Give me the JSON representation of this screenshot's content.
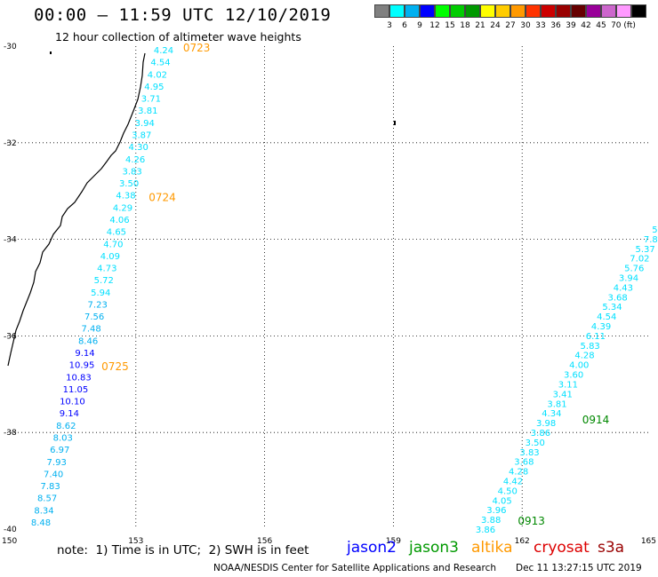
{
  "header": {
    "title": "00:00 – 11:59 UTC 12/10/2019",
    "subtitle": "12 hour collection of altimeter wave heights"
  },
  "colorbar": {
    "colors": [
      "#808080",
      "#00ffff",
      "#00b0f0",
      "#0000ff",
      "#00ff00",
      "#00cc00",
      "#009900",
      "#ffff00",
      "#ffcc00",
      "#ff9900",
      "#ff3300",
      "#cc0000",
      "#990000",
      "#660000",
      "#990099",
      "#cc66cc",
      "#ff99ff",
      "#000000"
    ],
    "labels": [
      "3",
      "6",
      "9",
      "12",
      "15",
      "18",
      "21",
      "24",
      "27",
      "30",
      "33",
      "36",
      "39",
      "42",
      "45",
      "70 (ft)"
    ]
  },
  "map": {
    "lat_labels": [
      "-30",
      "-32",
      "-34",
      "-36",
      "-38",
      "-40"
    ],
    "lon_labels": [
      "150",
      "153",
      "156",
      "159",
      "162",
      "165"
    ],
    "lat_range": [
      -40,
      -30
    ],
    "lon_range": [
      150,
      165
    ]
  },
  "passes": [
    {
      "label": "0723",
      "color": "#ff9900",
      "lat": -30.0,
      "lon": 154.1
    },
    {
      "label": "0724",
      "color": "#ff9900",
      "lat": -33.1,
      "lon": 153.3
    },
    {
      "label": "0725",
      "color": "#ff9900",
      "lat": -36.6,
      "lon": 152.2
    },
    {
      "label": "0914",
      "color": "#008800",
      "lat": -37.7,
      "lon": 163.4
    },
    {
      "label": "0913",
      "color": "#008800",
      "lat": -39.8,
      "lon": 161.9
    }
  ],
  "track_west": {
    "values": [
      "4.24",
      "4.54",
      "4.02",
      "4.95",
      "3.71",
      "3.81",
      "3.94",
      "3.87",
      "4.30",
      "4.26",
      "3.83",
      "3.50",
      "4.38",
      "4.29",
      "4.06",
      "4.65",
      "4.70",
      "4.09",
      "4.73",
      "5.72",
      "5.94",
      "7.23",
      "7.56",
      "7.48",
      "8.46",
      "9.14",
      "10.95",
      "10.83",
      "11.05",
      "10.10",
      "9.14",
      "8.62",
      "8.03",
      "6.97",
      "7.93",
      "7.40",
      "7.83",
      "8.57",
      "8.34",
      "8.48"
    ],
    "colors": [
      "#00e0ff",
      "#00e0ff",
      "#00e0ff",
      "#00e0ff",
      "#00e0ff",
      "#00e0ff",
      "#00e0ff",
      "#00e0ff",
      "#00e0ff",
      "#00e0ff",
      "#00e0ff",
      "#00e0ff",
      "#00e0ff",
      "#00e0ff",
      "#00e0ff",
      "#00e0ff",
      "#00e0ff",
      "#00e0ff",
      "#00e0ff",
      "#00e0ff",
      "#00e0ff",
      "#00b0f0",
      "#00b0f0",
      "#00b0f0",
      "#00b0f0",
      "#0000ff",
      "#0000ff",
      "#0000ff",
      "#0000ff",
      "#0000ff",
      "#0000ff",
      "#00b0f0",
      "#00b0f0",
      "#00b0f0",
      "#00b0f0",
      "#00b0f0",
      "#00b0f0",
      "#00b0f0",
      "#00b0f0",
      "#00b0f0"
    ]
  },
  "track_east": {
    "values": [
      "3.86",
      "3.88",
      "3.96",
      "4.05",
      "4.50",
      "4.42",
      "4.28",
      "3.68",
      "3.83",
      "3.50",
      "3.86",
      "3.98",
      "4.34",
      "3.81",
      "3.41",
      "3.11",
      "3.60",
      "4.00",
      "4.28",
      "5.83",
      "6.11",
      "4.39",
      "4.54",
      "5.34",
      "3.68",
      "4.43",
      "3.94",
      "5.76",
      "7.02",
      "5.37",
      "7.8",
      "5."
    ],
    "color": "#00e0ff"
  },
  "legend": {
    "note": "note:  1) Time is in UTC;  2) SWH is in feet",
    "satellites": [
      {
        "name": "jason2",
        "color": "#0000ff"
      },
      {
        "name": "jason3",
        "color": "#009900"
      },
      {
        "name": "altika",
        "color": "#ff9900"
      },
      {
        "name": "cryosat",
        "color": "#dd0000"
      },
      {
        "name": "s3a",
        "color": "#990000"
      }
    ],
    "credit": "NOAA/NESDIS Center for Satellite Applications and Research",
    "timestamp": "Dec 11 13:27:15 UTC 2019"
  }
}
